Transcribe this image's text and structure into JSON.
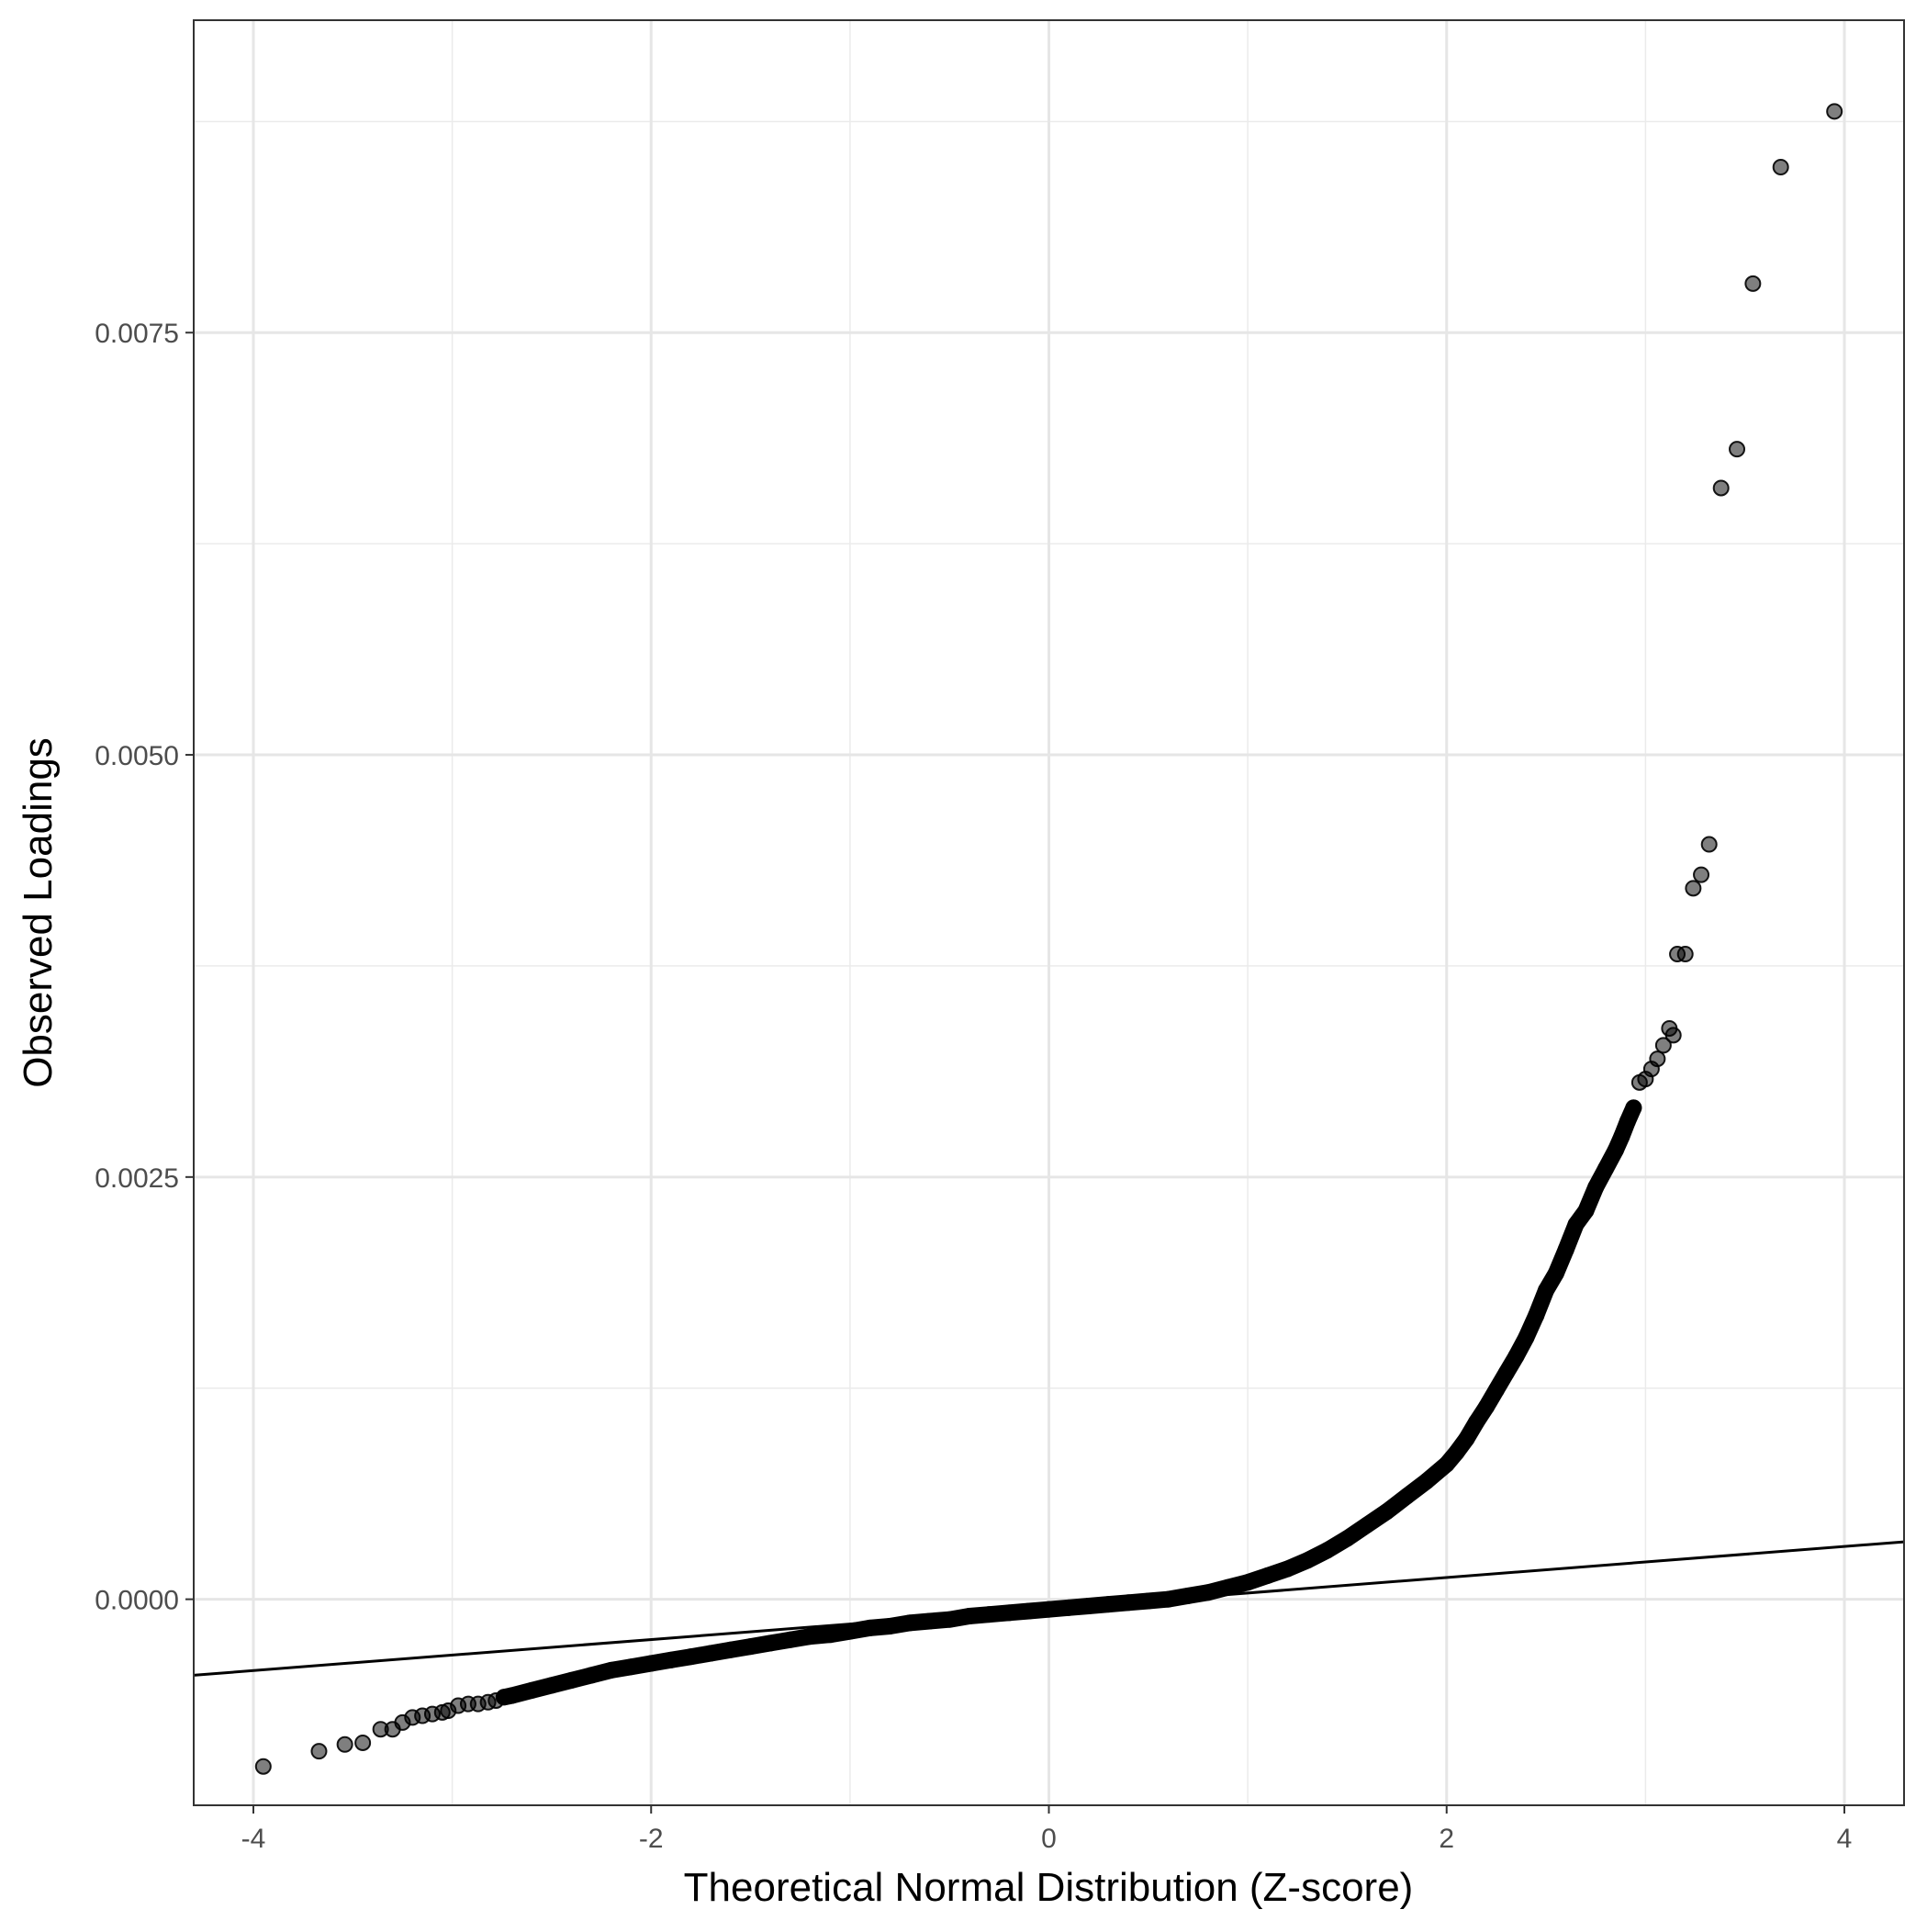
{
  "chart_data": {
    "type": "scatter",
    "title": "",
    "xlabel": "Theoretical Normal Distribution (Z-score)",
    "ylabel": "Observed Loadings",
    "xlim": [
      -4.3,
      4.3
    ],
    "ylim": [
      -0.00122,
      0.00935
    ],
    "x_ticks": [
      {
        "value": -4,
        "label": "-4"
      },
      {
        "value": -2,
        "label": "-2"
      },
      {
        "value": 0,
        "label": "0"
      },
      {
        "value": 2,
        "label": "2"
      },
      {
        "value": 4,
        "label": "4"
      }
    ],
    "y_ticks": [
      {
        "value": 0.0,
        "label": "0.0000"
      },
      {
        "value": 0.0025,
        "label": "0.0025"
      },
      {
        "value": 0.005,
        "label": "0.0050"
      },
      {
        "value": 0.0075,
        "label": "0.0075"
      }
    ],
    "grid": true,
    "legend": "none",
    "reference_line": {
      "x": [
        -4.3,
        4.3
      ],
      "y": [
        -0.00045,
        0.00034
      ]
    },
    "points_style": {
      "color": "#000000",
      "opacity": 0.5
    },
    "points": [
      [
        -3.95,
        -0.00099
      ],
      [
        -3.67,
        -0.0009
      ],
      [
        -3.54,
        -0.00086
      ],
      [
        -3.45,
        -0.00085
      ],
      [
        -3.36,
        -0.00077
      ],
      [
        -3.3,
        -0.00077
      ],
      [
        -3.25,
        -0.00073
      ],
      [
        -3.2,
        -0.0007
      ],
      [
        -3.15,
        -0.00069
      ],
      [
        -3.1,
        -0.00068
      ],
      [
        -3.05,
        -0.00067
      ],
      [
        -3.02,
        -0.00066
      ],
      [
        -2.97,
        -0.00063
      ],
      [
        -2.92,
        -0.00062
      ],
      [
        -2.87,
        -0.00062
      ],
      [
        -2.82,
        -0.00061
      ],
      [
        -2.78,
        -0.0006
      ],
      [
        -2.74,
        -0.00058
      ],
      [
        -2.7,
        -0.00057
      ],
      [
        -2.6,
        -0.00054
      ],
      [
        -2.5,
        -0.00051
      ],
      [
        -2.4,
        -0.00048
      ],
      [
        -2.3,
        -0.00045
      ],
      [
        -2.2,
        -0.00042
      ],
      [
        -2.1,
        -0.0004
      ],
      [
        -2.0,
        -0.00038
      ],
      [
        -1.9,
        -0.00036
      ],
      [
        -1.8,
        -0.00034
      ],
      [
        -1.7,
        -0.00032
      ],
      [
        -1.6,
        -0.0003
      ],
      [
        -1.5,
        -0.00028
      ],
      [
        -1.4,
        -0.00026
      ],
      [
        -1.3,
        -0.00024
      ],
      [
        -1.2,
        -0.00022
      ],
      [
        -1.1,
        -0.00021
      ],
      [
        -1.0,
        -0.00019
      ],
      [
        -0.9,
        -0.00017
      ],
      [
        -0.8,
        -0.00016
      ],
      [
        -0.7,
        -0.00014
      ],
      [
        -0.6,
        -0.00013
      ],
      [
        -0.5,
        -0.00012
      ],
      [
        -0.4,
        -0.0001
      ],
      [
        -0.3,
        -9e-05
      ],
      [
        -0.2,
        -8e-05
      ],
      [
        -0.1,
        -7e-05
      ],
      [
        0.0,
        -6e-05
      ],
      [
        0.1,
        -5e-05
      ],
      [
        0.2,
        -4e-05
      ],
      [
        0.3,
        -3e-05
      ],
      [
        0.4,
        -2e-05
      ],
      [
        0.5,
        -1e-05
      ],
      [
        0.6,
        0.0
      ],
      [
        0.7,
        2e-05
      ],
      [
        0.8,
        4e-05
      ],
      [
        0.9,
        7e-05
      ],
      [
        1.0,
        0.0001
      ],
      [
        1.1,
        0.00014
      ],
      [
        1.2,
        0.00018
      ],
      [
        1.3,
        0.00023
      ],
      [
        1.4,
        0.00029
      ],
      [
        1.5,
        0.00036
      ],
      [
        1.6,
        0.00044
      ],
      [
        1.7,
        0.00052
      ],
      [
        1.8,
        0.00061
      ],
      [
        1.9,
        0.0007
      ],
      [
        2.0,
        0.0008
      ],
      [
        2.05,
        0.00087
      ],
      [
        2.1,
        0.00095
      ],
      [
        2.15,
        0.00105
      ],
      [
        2.2,
        0.00114
      ],
      [
        2.25,
        0.00124
      ],
      [
        2.3,
        0.00134
      ],
      [
        2.35,
        0.00144
      ],
      [
        2.4,
        0.00155
      ],
      [
        2.45,
        0.00168
      ],
      [
        2.5,
        0.00183
      ],
      [
        2.55,
        0.00193
      ],
      [
        2.6,
        0.00207
      ],
      [
        2.65,
        0.00222
      ],
      [
        2.7,
        0.0023
      ],
      [
        2.75,
        0.00244
      ],
      [
        2.8,
        0.00255
      ],
      [
        2.85,
        0.00266
      ],
      [
        2.88,
        0.00274
      ],
      [
        2.91,
        0.00283
      ],
      [
        2.94,
        0.00291
      ],
      [
        2.97,
        0.00306
      ],
      [
        3.0,
        0.00308
      ],
      [
        3.03,
        0.00314
      ],
      [
        3.06,
        0.0032
      ],
      [
        3.09,
        0.00328
      ],
      [
        3.12,
        0.00338
      ],
      [
        3.14,
        0.00334
      ],
      [
        3.16,
        0.00382
      ],
      [
        3.2,
        0.00382
      ],
      [
        3.24,
        0.00421
      ],
      [
        3.28,
        0.00429
      ],
      [
        3.32,
        0.00447
      ],
      [
        3.38,
        0.00658
      ],
      [
        3.46,
        0.00681
      ],
      [
        3.54,
        0.00779
      ],
      [
        3.68,
        0.00848
      ],
      [
        3.95,
        0.00881
      ]
    ]
  }
}
